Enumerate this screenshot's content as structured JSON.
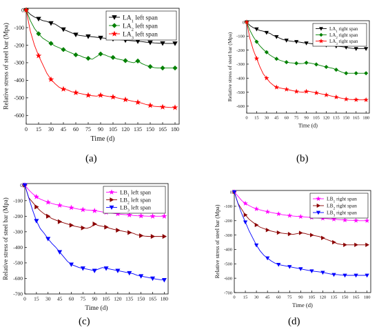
{
  "panels": [
    {
      "label": "(a)"
    },
    {
      "label": "(b)"
    },
    {
      "label": "(c)"
    },
    {
      "label": "(d)"
    }
  ],
  "chart_data": [
    {
      "type": "line",
      "xlabel": "Time (d)",
      "ylabel": "Relative stress of steel bar (Mpa)",
      "xlim": [
        0,
        185
      ],
      "ylim": [
        -650,
        10
      ],
      "xticks": [
        0,
        15,
        30,
        45,
        60,
        75,
        90,
        105,
        120,
        135,
        150,
        165,
        180
      ],
      "yticks": [
        0,
        -100,
        -200,
        -300,
        -400,
        -500,
        -600
      ],
      "legend_position": "top-right",
      "x": [
        0,
        5,
        10,
        15,
        20,
        25,
        30,
        35,
        40,
        45,
        50,
        55,
        60,
        65,
        70,
        75,
        80,
        85,
        90,
        95,
        100,
        105,
        110,
        115,
        120,
        125,
        130,
        135,
        140,
        145,
        150,
        155,
        160,
        165,
        170,
        175,
        180
      ],
      "series": [
        {
          "name": "LA1 left span",
          "color": "#000000",
          "marker": "triangle-down",
          "values": [
            0,
            -25,
            -40,
            -50,
            -60,
            -65,
            -75,
            -80,
            -95,
            -110,
            -120,
            -130,
            -140,
            -145,
            -148,
            -150,
            -152,
            -155,
            -158,
            -160,
            -163,
            -165,
            -168,
            -170,
            -172,
            -174,
            -176,
            -178,
            -180,
            -183,
            -185,
            -187,
            -188,
            -189,
            -190,
            -190,
            -190
          ]
        },
        {
          "name": "LA2 left span",
          "color": "#008000",
          "marker": "diamond",
          "values": [
            0,
            -60,
            -105,
            -135,
            -160,
            -175,
            -190,
            -205,
            -215,
            -225,
            -235,
            -245,
            -255,
            -260,
            -270,
            -275,
            -280,
            -265,
            -250,
            -255,
            -265,
            -270,
            -278,
            -283,
            -288,
            -295,
            -300,
            -290,
            -305,
            -315,
            -322,
            -328,
            -330,
            -330,
            -330,
            -330,
            -330
          ]
        },
        {
          "name": "LA3 left span",
          "color": "#ff0000",
          "marker": "star",
          "values": [
            0,
            -120,
            -200,
            -260,
            -310,
            -360,
            -395,
            -420,
            -440,
            -450,
            -455,
            -465,
            -470,
            -475,
            -480,
            -485,
            -488,
            -490,
            -485,
            -488,
            -492,
            -495,
            -500,
            -505,
            -510,
            -515,
            -520,
            -525,
            -530,
            -538,
            -543,
            -548,
            -550,
            -552,
            -553,
            -555,
            -555
          ]
        }
      ]
    },
    {
      "type": "line",
      "xlabel": "Time (d)",
      "ylabel": "Relative stress of steel bar (Mpa)",
      "xlim": [
        0,
        185
      ],
      "ylim": [
        -650,
        10
      ],
      "xticks": [
        0,
        15,
        30,
        45,
        60,
        75,
        90,
        105,
        120,
        135,
        150,
        165,
        180
      ],
      "yticks": [
        0,
        -100,
        -200,
        -300,
        -400,
        -500,
        -600
      ],
      "legend_position": "top-right",
      "x": [
        0,
        5,
        10,
        15,
        20,
        25,
        30,
        35,
        40,
        45,
        50,
        55,
        60,
        65,
        70,
        75,
        80,
        85,
        90,
        95,
        100,
        105,
        110,
        115,
        120,
        125,
        130,
        135,
        140,
        145,
        150,
        155,
        160,
        165,
        170,
        175,
        180
      ],
      "series": [
        {
          "name": "LA1 right span",
          "color": "#000000",
          "marker": "triangle-down",
          "values": [
            0,
            -25,
            -40,
            -50,
            -60,
            -65,
            -75,
            -80,
            -95,
            -105,
            -115,
            -125,
            -130,
            -135,
            -138,
            -140,
            -143,
            -147,
            -150,
            -152,
            -155,
            -158,
            -160,
            -162,
            -165,
            -167,
            -170,
            -172,
            -174,
            -176,
            -180,
            -185,
            -188,
            -190,
            -190,
            -190,
            -190
          ]
        },
        {
          "name": "LA2 right span",
          "color": "#008000",
          "marker": "diamond",
          "values": [
            0,
            -60,
            -105,
            -140,
            -170,
            -195,
            -215,
            -235,
            -250,
            -262,
            -272,
            -280,
            -286,
            -290,
            -292,
            -294,
            -296,
            -295,
            -290,
            -292,
            -297,
            -302,
            -308,
            -315,
            -320,
            -325,
            -330,
            -340,
            -350,
            -360,
            -365,
            -365,
            -365,
            -365,
            -365,
            -365,
            -365
          ]
        },
        {
          "name": "LA3 right span",
          "color": "#ff0000",
          "marker": "star",
          "values": [
            0,
            -120,
            -200,
            -260,
            -320,
            -370,
            -400,
            -430,
            -450,
            -465,
            -470,
            -475,
            -480,
            -485,
            -490,
            -495,
            -498,
            -500,
            -495,
            -495,
            -500,
            -505,
            -510,
            -515,
            -520,
            -525,
            -530,
            -535,
            -540,
            -545,
            -550,
            -552,
            -553,
            -554,
            -555,
            -555,
            -555
          ]
        }
      ]
    },
    {
      "type": "line",
      "xlabel": "Time (d)",
      "ylabel": "Relative stress of steel bar (Mpa)",
      "xlim": [
        0,
        185
      ],
      "ylim": [
        -700,
        10
      ],
      "xticks": [
        0,
        15,
        30,
        45,
        60,
        75,
        90,
        105,
        120,
        135,
        150,
        165,
        180
      ],
      "yticks": [
        0,
        -100,
        -200,
        -300,
        -400,
        -500,
        -600,
        -700
      ],
      "legend_position": "top-right",
      "x": [
        0,
        5,
        10,
        15,
        20,
        25,
        30,
        35,
        40,
        45,
        50,
        55,
        60,
        65,
        70,
        75,
        80,
        85,
        90,
        95,
        100,
        105,
        110,
        115,
        120,
        125,
        130,
        135,
        140,
        145,
        150,
        155,
        160,
        165,
        170,
        175,
        180
      ],
      "series": [
        {
          "name": "LB1 left span",
          "color": "#ff00ff",
          "marker": "star",
          "values": [
            0,
            -30,
            -55,
            -75,
            -90,
            -100,
            -110,
            -118,
            -125,
            -130,
            -135,
            -140,
            -145,
            -150,
            -155,
            -158,
            -160,
            -162,
            -165,
            -168,
            -172,
            -175,
            -178,
            -182,
            -185,
            -188,
            -190,
            -192,
            -195,
            -197,
            -198,
            -199,
            -200,
            -200,
            -200,
            -200,
            -200
          ]
        },
        {
          "name": "LB2 left span",
          "color": "#8b0000",
          "marker": "triangle-right",
          "values": [
            0,
            -80,
            -110,
            -140,
            -165,
            -185,
            -200,
            -215,
            -225,
            -235,
            -242,
            -250,
            -258,
            -265,
            -270,
            -275,
            -278,
            -270,
            -250,
            -260,
            -265,
            -270,
            -278,
            -285,
            -290,
            -295,
            -300,
            -305,
            -310,
            -320,
            -325,
            -328,
            -330,
            -330,
            -330,
            -330,
            -330
          ]
        },
        {
          "name": "LB3 left span",
          "color": "#0000ff",
          "marker": "triangle-down",
          "values": [
            0,
            -80,
            -160,
            -230,
            -280,
            -310,
            -345,
            -375,
            -400,
            -430,
            -460,
            -490,
            -510,
            -520,
            -530,
            -535,
            -540,
            -545,
            -550,
            -540,
            -530,
            -535,
            -540,
            -545,
            -550,
            -555,
            -560,
            -565,
            -570,
            -580,
            -585,
            -590,
            -595,
            -600,
            -605,
            -608,
            -610
          ]
        }
      ]
    },
    {
      "type": "line",
      "xlabel": "Time (d)",
      "ylabel": "Relative stress of steel bar (Mpa)",
      "xlim": [
        0,
        185
      ],
      "ylim": [
        -700,
        10
      ],
      "xticks": [
        0,
        15,
        30,
        45,
        60,
        75,
        90,
        105,
        120,
        135,
        150,
        165,
        180
      ],
      "yticks": [
        0,
        -100,
        -200,
        -300,
        -400,
        -500,
        -600,
        -700
      ],
      "legend_position": "top-right",
      "x": [
        0,
        5,
        10,
        15,
        20,
        25,
        30,
        35,
        40,
        45,
        50,
        55,
        60,
        65,
        70,
        75,
        80,
        85,
        90,
        95,
        100,
        105,
        110,
        115,
        120,
        125,
        130,
        135,
        140,
        145,
        150,
        155,
        160,
        165,
        170,
        175,
        180
      ],
      "series": [
        {
          "name": "LB1 right span",
          "color": "#ff00ff",
          "marker": "star",
          "values": [
            0,
            -30,
            -60,
            -80,
            -95,
            -108,
            -118,
            -125,
            -132,
            -138,
            -143,
            -148,
            -153,
            -158,
            -162,
            -165,
            -168,
            -170,
            -172,
            -174,
            -176,
            -178,
            -180,
            -182,
            -184,
            -186,
            -188,
            -190,
            -192,
            -194,
            -196,
            -197,
            -198,
            -199,
            -200,
            -200,
            -200
          ]
        },
        {
          "name": "LB2 right span",
          "color": "#8b0000",
          "marker": "triangle-right",
          "values": [
            0,
            -80,
            -120,
            -160,
            -190,
            -210,
            -230,
            -245,
            -255,
            -265,
            -272,
            -278,
            -283,
            -287,
            -290,
            -293,
            -295,
            -290,
            -285,
            -288,
            -295,
            -300,
            -305,
            -310,
            -320,
            -330,
            -340,
            -350,
            -360,
            -365,
            -368,
            -368,
            -368,
            -368,
            -368,
            -368,
            -368
          ]
        },
        {
          "name": "LB3 right span",
          "color": "#0000ff",
          "marker": "triangle-down",
          "values": [
            0,
            -80,
            -150,
            -210,
            -270,
            -320,
            -370,
            -410,
            -440,
            -460,
            -480,
            -495,
            -505,
            -510,
            -515,
            -520,
            -525,
            -530,
            -535,
            -540,
            -545,
            -550,
            -553,
            -556,
            -560,
            -565,
            -570,
            -575,
            -575,
            -578,
            -580,
            -580,
            -580,
            -580,
            -580,
            -580,
            -580
          ]
        }
      ]
    }
  ]
}
